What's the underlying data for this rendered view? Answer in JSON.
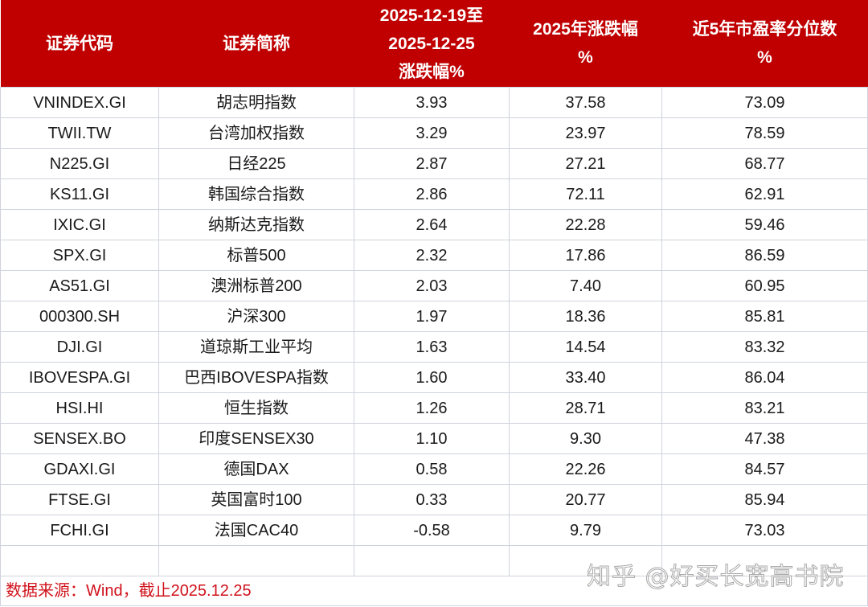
{
  "table": {
    "headers": [
      [
        "证券代码"
      ],
      [
        "证券简称"
      ],
      [
        "2025-12-19至",
        "2025-12-25",
        "涨跌幅%"
      ],
      [
        "2025年涨跌幅",
        "%"
      ],
      [
        "近5年市盈率分位数",
        "%"
      ]
    ],
    "rows": [
      [
        "VNINDEX.GI",
        "胡志明指数",
        "3.93",
        "37.58",
        "73.09"
      ],
      [
        "TWII.TW",
        "台湾加权指数",
        "3.29",
        "23.97",
        "78.59"
      ],
      [
        "N225.GI",
        "日经225",
        "2.87",
        "27.21",
        "68.77"
      ],
      [
        "KS11.GI",
        "韩国综合指数",
        "2.86",
        "72.11",
        "62.91"
      ],
      [
        "IXIC.GI",
        "纳斯达克指数",
        "2.64",
        "22.28",
        "59.46"
      ],
      [
        "SPX.GI",
        "标普500",
        "2.32",
        "17.86",
        "86.59"
      ],
      [
        "AS51.GI",
        "澳洲标普200",
        "2.03",
        "7.40",
        "60.95"
      ],
      [
        "000300.SH",
        "沪深300",
        "1.97",
        "18.36",
        "85.81"
      ],
      [
        "DJI.GI",
        "道琼斯工业平均",
        "1.63",
        "14.54",
        "83.32"
      ],
      [
        "IBOVESPA.GI",
        "巴西IBOVESPA指数",
        "1.60",
        "33.40",
        "86.04"
      ],
      [
        "HSI.HI",
        "恒生指数",
        "1.26",
        "28.71",
        "83.21"
      ],
      [
        "SENSEX.BO",
        "印度SENSEX30",
        "1.10",
        "9.30",
        "47.38"
      ],
      [
        "GDAXI.GI",
        "德国DAX",
        "0.58",
        "22.26",
        "84.57"
      ],
      [
        "FTSE.GI",
        "英国富时100",
        "0.33",
        "20.77",
        "85.94"
      ],
      [
        "FCHI.GI",
        "法国CAC40",
        "-0.58",
        "9.79",
        "73.03"
      ]
    ],
    "footer": "数据来源：Wind，截止2025.12.25"
  },
  "watermark": "知乎 @好买长宽高书院",
  "colors": {
    "header_bg": "#c00000",
    "header_text": "#ffffff",
    "footer_text": "#d0121b",
    "grid": "#cfd3de"
  }
}
